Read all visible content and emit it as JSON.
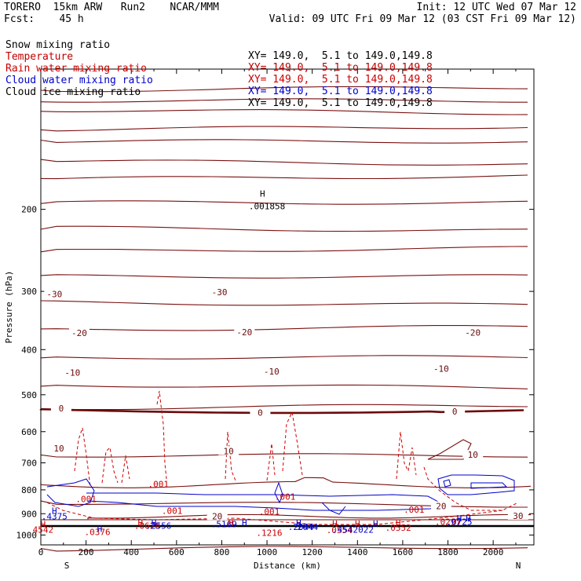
{
  "header": {
    "title": "TORERO  15km ARW   Run2    NCAR/MMM",
    "fcst": "Fcst:    45 h",
    "init": "Init: 12 UTC Wed 07 Mar 12",
    "valid": "Valid: 09 UTC Fri 09 Mar 12 (03 CST Fri 09 Mar 12)"
  },
  "fields": [
    {
      "name": "Snow mixing ratio",
      "xy": "XY= 149.0,  5.1 to 149.0,149.8",
      "color": "#000000"
    },
    {
      "name": "Temperature",
      "xy": "XY= 149.0,  5.1 to 149.0,149.8",
      "color": "#c00000"
    },
    {
      "name": "Rain water mixing ratio",
      "xy": "XY= 149.0,  5.1 to 149.0,149.8",
      "color": "#cc0000"
    },
    {
      "name": "Cloud water mixing ratio",
      "xy": "XY= 149.0,  5.1 to 149.0,149.8",
      "color": "#0000cc"
    },
    {
      "name": "Cloud ice mixing ratio",
      "xy": "XY= 149.0,  5.1 to 149.0,149.8",
      "color": "#000000"
    }
  ],
  "chart_data": {
    "type": "contour cross-section",
    "xlabel": "Distance (km)",
    "ylabel": "Pressure (hPa)",
    "xlim": [
      0,
      2180
    ],
    "ylim": [
      1050,
      100
    ],
    "y_scale": "log",
    "x_ticks": [
      0,
      200,
      400,
      600,
      800,
      1000,
      1200,
      1400,
      1600,
      1800,
      2000
    ],
    "y_ticks": [
      200,
      300,
      400,
      500,
      600,
      700,
      800,
      900,
      1000
    ],
    "endpoints": {
      "left": "S",
      "right": "N"
    },
    "temperature_contours": [
      {
        "value": -30,
        "labels": [
          {
            "x": 60,
            "p": 305
          },
          {
            "x": 790,
            "p": 302
          }
        ]
      },
      {
        "value": -20,
        "labels": [
          {
            "x": 170,
            "p": 370
          },
          {
            "x": 900,
            "p": 368
          },
          {
            "x": 1910,
            "p": 369
          }
        ]
      },
      {
        "value": -10,
        "labels": [
          {
            "x": 140,
            "p": 450
          },
          {
            "x": 1020,
            "p": 447
          },
          {
            "x": 1770,
            "p": 441
          }
        ]
      },
      {
        "value": 0,
        "labels": [
          {
            "x": 90,
            "p": 537
          },
          {
            "x": 970,
            "p": 548
          },
          {
            "x": 1830,
            "p": 545
          }
        ]
      },
      {
        "value": 10,
        "labels": [
          {
            "x": 80,
            "p": 654
          },
          {
            "x": 830,
            "p": 663
          },
          {
            "x": 1910,
            "p": 675
          }
        ]
      },
      {
        "value": 20,
        "labels": [
          {
            "x": 780,
            "p": 914
          },
          {
            "x": 1770,
            "p": 870
          }
        ]
      },
      {
        "value": 30,
        "labels": [
          {
            "x": 2110,
            "p": 913
          }
        ]
      }
    ],
    "rain_water_labels": [
      {
        "text": ".001",
        "x": 520,
        "p": 790
      },
      {
        "text": ".001",
        "x": 200,
        "p": 850
      },
      {
        "text": ".001",
        "x": 580,
        "p": 900
      },
      {
        "text": ".001",
        "x": 1080,
        "p": 840
      },
      {
        "text": ".001",
        "x": 1010,
        "p": 905
      },
      {
        "text": ".001",
        "x": 1650,
        "p": 895
      },
      {
        "text": ".0628",
        "x": 470,
        "p": 970
      },
      {
        "text": ".0376",
        "x": 250,
        "p": 1000
      },
      {
        "text": ".1216",
        "x": 1010,
        "p": 1005
      },
      {
        "text": ".0554",
        "x": 1320,
        "p": 990
      },
      {
        "text": ".0552",
        "x": 1580,
        "p": 980
      },
      {
        "text": ".0297",
        "x": 1800,
        "p": 952
      }
    ],
    "cloud_water_labels": [
      {
        "text": ".4375",
        "x": 60,
        "p": 925
      },
      {
        "text": ".2556",
        "x": 520,
        "p": 970
      },
      {
        "text": ".5169",
        "x": 810,
        "p": 962
      },
      {
        "text": ".2044",
        "x": 1150,
        "p": 975
      },
      {
        "text": ".4542022",
        "x": 1380,
        "p": 988
      },
      {
        "text": ".0725",
        "x": 1850,
        "p": 952
      }
    ],
    "other_labels": [
      {
        "text": ".001858",
        "x": 1000,
        "p": 200,
        "color": "#000000"
      },
      {
        "text": "4542",
        "x": 10,
        "p": 988,
        "color": "#cc0000"
      },
      {
        "text": "2044",
        "x": 1180,
        "p": 975,
        "color": "#0000cc"
      }
    ],
    "highs": [
      {
        "x": 980,
        "p": 188,
        "color": "#000000"
      },
      {
        "x": 60,
        "p": 900,
        "color": "#0000cc"
      },
      {
        "x": 10,
        "p": 962,
        "color": "#cc0000"
      },
      {
        "x": 440,
        "p": 955,
        "color": "#cc0000"
      },
      {
        "x": 500,
        "p": 955,
        "color": "#0000cc"
      },
      {
        "x": 260,
        "p": 985,
        "color": "#0000cc"
      },
      {
        "x": 840,
        "p": 955,
        "color": "#cc0000"
      },
      {
        "x": 900,
        "p": 955,
        "color": "#0000cc"
      },
      {
        "x": 1140,
        "p": 955,
        "color": "#0000cc"
      },
      {
        "x": 1300,
        "p": 960,
        "color": "#cc0000"
      },
      {
        "x": 1400,
        "p": 960,
        "color": "#cc0000"
      },
      {
        "x": 1480,
        "p": 960,
        "color": "#0000cc"
      },
      {
        "x": 1580,
        "p": 955,
        "color": "#cc0000"
      },
      {
        "x": 1850,
        "p": 935,
        "color": "#0000cc"
      },
      {
        "x": 1890,
        "p": 935,
        "color": "#0000cc"
      }
    ]
  }
}
